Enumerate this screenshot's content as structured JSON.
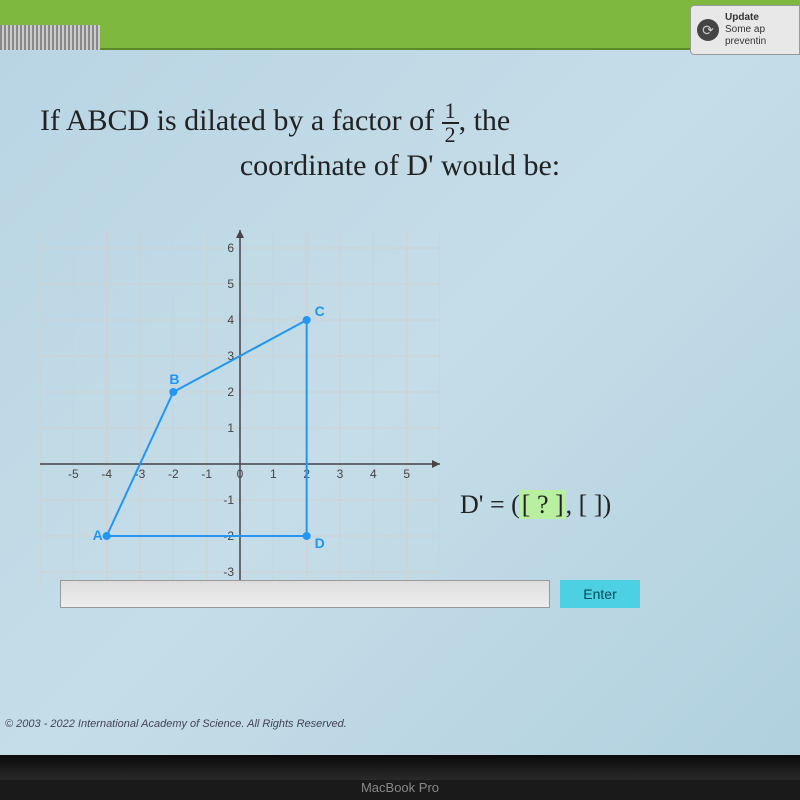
{
  "notification": {
    "title": "Update",
    "line1": "Some ap",
    "line2": "preventin"
  },
  "question": {
    "line1_pre": "If ABCD is dilated by a factor of ",
    "frac_num": "1",
    "frac_den": "2",
    "line1_post": ", the",
    "line2": "coordinate of D' would be:"
  },
  "chart": {
    "type": "scatter-polygon",
    "xlim": [
      -6,
      6
    ],
    "ylim": [
      -3.5,
      6.5
    ],
    "xtick_step": 1,
    "ytick_step": 1,
    "x_labels": [
      -5,
      -4,
      -3,
      -2,
      -1,
      0,
      1,
      2,
      3,
      4,
      5
    ],
    "y_labels": [
      -3,
      -2,
      -1,
      1,
      2,
      3,
      4,
      5,
      6
    ],
    "grid_color": "#d0d0d0",
    "axis_color": "#444",
    "background_color": "transparent",
    "line_color": "#2196F3",
    "point_color": "#2196F3",
    "point_radius": 4,
    "line_width": 2,
    "points": {
      "A": {
        "x": -4,
        "y": -2,
        "label": "A"
      },
      "B": {
        "x": -2,
        "y": 2,
        "label": "B"
      },
      "C": {
        "x": 2,
        "y": 4,
        "label": "C"
      },
      "D": {
        "x": 2,
        "y": -2,
        "label": "D"
      }
    },
    "polygon_order": [
      "A",
      "B",
      "C",
      "D"
    ]
  },
  "answer": {
    "prefix": "D' = (",
    "slot1": "[ ? ]",
    "sep": ", ",
    "slot2": "[   ]",
    "suffix": ")"
  },
  "enter_label": "Enter",
  "copyright": "© 2003 - 2022 International Academy of Science. All Rights Reserved.",
  "laptop": "MacBook Pro"
}
